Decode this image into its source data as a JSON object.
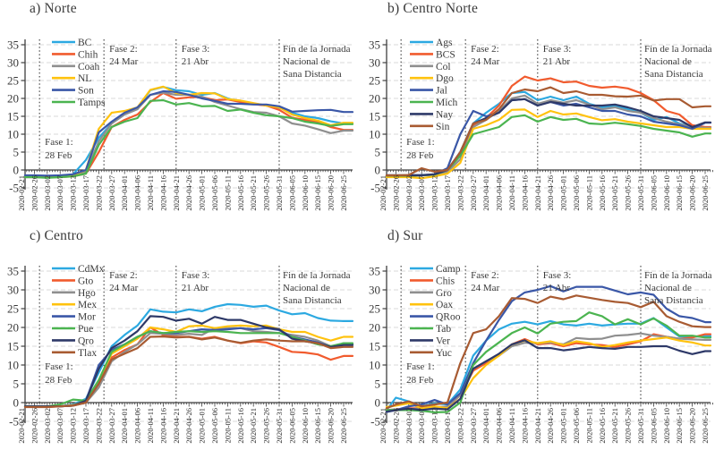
{
  "figure": {
    "background": "#ffffff"
  },
  "axis": {
    "ylim": [
      -5,
      35
    ],
    "y_ticks": [
      -5,
      0,
      5,
      10,
      15,
      20,
      25,
      30,
      35
    ],
    "x_tick_labels": [
      "2020-02-21",
      "2020-02-26",
      "2020-03-02",
      "2020-03-07",
      "2020-03-12",
      "2020-03-17",
      "2020-03-22",
      "2020-03-27",
      "2020-04-01",
      "2020-04-06",
      "2020-04-11",
      "2020-04-16",
      "2020-04-21",
      "2020-04-26",
      "2020-05-01",
      "2020-05-06",
      "2020-05-11",
      "2020-05-16",
      "2020-05-21",
      "2020-05-26",
      "2020-05-31",
      "2020-06-05",
      "2020-06-10",
      "2020-06-15",
      "2020-06-20",
      "2020-06-25"
    ],
    "x_tick_interval_days": 5,
    "grid": "dashed-horizontal",
    "legend_position": "upper-left"
  },
  "colors": {
    "axis": "#3f3f3f",
    "grid": "#d9d9d9",
    "text": "#3a3a3a",
    "tick_label": "#2b2b2b",
    "event_line": "#3c3c3c"
  },
  "events": [
    {
      "name": "fase-1",
      "lines": [
        "Fase 1:",
        "28 Feb"
      ],
      "date": "2020-02-28",
      "placement": "lower"
    },
    {
      "name": "fase-2",
      "lines": [
        "Fase 2:",
        "24 Mar"
      ],
      "date": "2020-03-24",
      "placement": "upper"
    },
    {
      "name": "fase-3",
      "lines": [
        "Fase 3:",
        "21 Abr"
      ],
      "date": "2020-04-21",
      "placement": "upper"
    },
    {
      "name": "fin-jornada",
      "lines": [
        "Fin de la Jornada",
        "Nacional de",
        "Sana Distancia"
      ],
      "date": "2020-05-31",
      "placement": "upper"
    }
  ],
  "chart_data": [
    {
      "id": "norte",
      "title": "a) Norte",
      "type": "line",
      "series": [
        {
          "name": "BC",
          "color": "#2CA9E1",
          "values": [
            -2,
            -2,
            -2,
            -1.8,
            -1.2,
            2.8,
            9,
            13,
            15.5,
            17,
            22.3,
            23.2,
            22.3,
            22,
            21,
            21.5,
            20,
            19,
            18.6,
            18,
            17.4,
            16,
            15,
            14.5,
            13.6,
            13
          ]
        },
        {
          "name": "Chih",
          "color": "#F15B2E",
          "values": [
            -2,
            -2,
            -2,
            -2,
            -1.8,
            -1,
            5,
            12,
            14,
            15.5,
            19,
            21.5,
            19.9,
            20.3,
            20.4,
            19.5,
            19.7,
            19,
            18.4,
            18,
            16.8,
            14.6,
            14,
            13.4,
            12,
            11.2
          ]
        },
        {
          "name": "Coah",
          "color": "#8F8F8F",
          "values": [
            -1.8,
            -2,
            -2,
            -2,
            -1.5,
            -0.5,
            8,
            13,
            15.5,
            17,
            21,
            21.6,
            21,
            21,
            20.5,
            19,
            18,
            17,
            16.2,
            16,
            15,
            13,
            12.4,
            11.4,
            10.3,
            11
          ]
        },
        {
          "name": "NL",
          "color": "#FFC20E",
          "values": [
            -1.8,
            -1.8,
            -1.8,
            -1.8,
            -1.5,
            0,
            11.5,
            16,
            16.5,
            17.5,
            22.4,
            23.3,
            21.5,
            21,
            21.5,
            21.4,
            19.8,
            19.4,
            18.7,
            18,
            17.5,
            15.5,
            14.5,
            13.8,
            12.5,
            13.2
          ]
        },
        {
          "name": "Son",
          "color": "#3A57A7",
          "values": [
            -1.5,
            -1.5,
            -1.6,
            -1.5,
            -1.2,
            0,
            10.5,
            13.5,
            16,
            17.5,
            21,
            22,
            21.8,
            21,
            20,
            19.3,
            18.5,
            18.5,
            18.3,
            18.3,
            17.8,
            16.3,
            16.5,
            16.7,
            16.8,
            16.2
          ]
        },
        {
          "name": "Tamps",
          "color": "#4BB450",
          "values": [
            -2,
            -2,
            -2.2,
            -2,
            -1.8,
            -1,
            7,
            12,
            13.5,
            14.5,
            19.3,
            19.5,
            18.3,
            18.7,
            17.8,
            17.9,
            16.5,
            16.9,
            16,
            15.3,
            15,
            14.5,
            13.5,
            13,
            12.3,
            12.8
          ]
        }
      ]
    },
    {
      "id": "centro-norte",
      "title": "b) Centro Norte",
      "type": "line",
      "series": [
        {
          "name": "Ags",
          "color": "#2CA9E1",
          "values": [
            -1.5,
            -1.5,
            -1.5,
            -1.5,
            -1.2,
            0,
            5,
            13,
            16,
            18.5,
            21.5,
            21.8,
            19.5,
            20.5,
            19.5,
            20.5,
            18.5,
            17.5,
            18,
            17,
            16,
            14,
            14.8,
            13,
            12,
            11.8
          ]
        },
        {
          "name": "BCS",
          "color": "#F15B2E",
          "values": [
            -1.5,
            -1.6,
            -1.5,
            -1.5,
            -1.3,
            0,
            4,
            12.5,
            14.5,
            18,
            23.5,
            26.1,
            25,
            25.6,
            24.5,
            24.7,
            23.5,
            23,
            23.3,
            22.8,
            21.5,
            19.5,
            16.5,
            15.5,
            12.5,
            12
          ]
        },
        {
          "name": "Col",
          "color": "#8F8F8F",
          "values": [
            -1.5,
            -1.5,
            -1.6,
            -1.5,
            -1.4,
            -0.5,
            3,
            12,
            14,
            16.5,
            20,
            20.8,
            18.5,
            19.5,
            18.8,
            19.5,
            18.3,
            17,
            17.5,
            16.5,
            16,
            14.5,
            13.5,
            12.8,
            12,
            11.8
          ]
        },
        {
          "name": "Dgo",
          "color": "#FFC20E",
          "values": [
            -2,
            -2,
            -2,
            -2.3,
            -1.8,
            -1,
            2,
            11.5,
            12.5,
            14,
            16.8,
            16.9,
            14.8,
            16.5,
            15.5,
            15.8,
            14.8,
            13.9,
            14.2,
            13.5,
            13,
            12.5,
            12,
            12,
            11.5,
            11.5
          ]
        },
        {
          "name": "Jal",
          "color": "#3A57A7",
          "values": [
            -1.5,
            -1.5,
            -1.5,
            -1.4,
            -1.2,
            0.5,
            10,
            16.5,
            15,
            16,
            19.5,
            19.8,
            18,
            19,
            18,
            18.5,
            17.5,
            16.5,
            16.5,
            15.5,
            15,
            13.5,
            13,
            12.5,
            11.5,
            13.2
          ]
        },
        {
          "name": "Mich",
          "color": "#4BB450",
          "values": [
            -1.6,
            -1.6,
            -1.6,
            -1.5,
            -1.3,
            0,
            4,
            10,
            11,
            12,
            14.8,
            15.3,
            13.5,
            14.8,
            14,
            14.3,
            13,
            12.8,
            13.2,
            12.8,
            12.3,
            11.5,
            11,
            10.5,
            9.3,
            10.2
          ]
        },
        {
          "name": "Nay",
          "color": "#2E3968",
          "values": [
            -1.5,
            -1.5,
            -1.5,
            -1.5,
            -1.2,
            0,
            5,
            13,
            14.5,
            16,
            19.5,
            19.8,
            18,
            19,
            18.5,
            18,
            18,
            18,
            18.3,
            17.5,
            16.5,
            15,
            14.5,
            14,
            12,
            13.3
          ]
        },
        {
          "name": "Sin",
          "color": "#A85B32",
          "values": [
            -1.5,
            -1.5,
            -1.4,
            0.5,
            -0.5,
            0,
            5,
            13,
            14,
            17,
            21.5,
            22.5,
            22,
            23.1,
            21.5,
            22,
            21,
            21,
            20.6,
            20.5,
            20.8,
            19.4,
            19.8,
            19.8,
            17.5,
            17.8
          ]
        }
      ]
    },
    {
      "id": "centro",
      "title": "c) Centro",
      "type": "line",
      "series": [
        {
          "name": "CdMx",
          "color": "#2CA9E1",
          "values": [
            -1,
            -1,
            -1,
            -1,
            -0.5,
            1,
            8,
            15,
            18,
            20.5,
            24.8,
            24.2,
            24,
            24.8,
            24.3,
            25.5,
            26.2,
            26,
            25.5,
            25.8,
            24.5,
            23.5,
            23.8,
            22.5,
            21.8,
            21.7
          ]
        },
        {
          "name": "Gto",
          "color": "#F15B2E",
          "values": [
            -1,
            -1,
            -1.2,
            -1,
            -0.8,
            0,
            5,
            12,
            14,
            15.5,
            20,
            18,
            17.5,
            17.5,
            17,
            17.5,
            16.5,
            15.8,
            16.3,
            16,
            14.8,
            13.5,
            13.3,
            12.8,
            11.4,
            12.4
          ]
        },
        {
          "name": "Hgo",
          "color": "#8F8F8F",
          "values": [
            -1,
            -1,
            -1,
            -1,
            -0.8,
            0,
            4,
            11,
            13.5,
            15.5,
            18.5,
            18.3,
            18,
            18.3,
            18,
            19.8,
            19.8,
            19.8,
            19,
            18.8,
            18.5,
            18,
            17.5,
            16.5,
            15,
            15.3
          ]
        },
        {
          "name": "Mex",
          "color": "#FFC20E",
          "values": [
            -1,
            -1,
            -1,
            -1,
            -0.7,
            0.5,
            6,
            13,
            15,
            17,
            20,
            19.5,
            18.8,
            20.3,
            20.5,
            19.8,
            20.3,
            20.5,
            20.3,
            20.5,
            19.5,
            18.8,
            18.8,
            17.5,
            16.5,
            17.5
          ]
        },
        {
          "name": "Mor",
          "color": "#3A57A7",
          "values": [
            -1,
            -1,
            -1,
            -1,
            -0.8,
            0.5,
            10,
            14,
            15.5,
            17.5,
            19,
            18.5,
            18.5,
            19,
            19.5,
            19.3,
            19.5,
            19.8,
            19.5,
            19.8,
            19.3,
            17.5,
            16.8,
            16,
            14.8,
            15.5
          ]
        },
        {
          "name": "Pue",
          "color": "#4BB450",
          "values": [
            -1,
            -1,
            -1,
            -0.5,
            0.8,
            0.5,
            6,
            13.5,
            15.5,
            17.5,
            19,
            18.5,
            18.8,
            19,
            18.8,
            19,
            18.8,
            18.5,
            18.5,
            18.5,
            18.5,
            17.5,
            16.5,
            15.5,
            15,
            15.8
          ]
        },
        {
          "name": "Qro",
          "color": "#2E3968",
          "values": [
            -1,
            -1,
            -1,
            -1,
            -0.8,
            0.5,
            9,
            14.5,
            16.5,
            19,
            23,
            22.8,
            21.8,
            22.3,
            21,
            22.8,
            22,
            22,
            21,
            20,
            19.5,
            17,
            16.3,
            15.8,
            14.8,
            15.3
          ]
        },
        {
          "name": "Tlax",
          "color": "#A85B32",
          "values": [
            -1.2,
            -1.2,
            -1.2,
            -1,
            -0.8,
            0,
            5,
            11.5,
            13,
            14.5,
            17.5,
            17.6,
            17.3,
            17.5,
            16.8,
            17.3,
            16.5,
            15.9,
            16.5,
            16.8,
            16.5,
            16.3,
            16.3,
            15.8,
            14.5,
            14.8
          ]
        }
      ]
    },
    {
      "id": "sur",
      "title": "d) Sur",
      "type": "line",
      "series": [
        {
          "name": "Camp",
          "color": "#2CA9E1",
          "values": [
            -2,
            1.3,
            0.3,
            -1,
            -0.2,
            -0.5,
            3.5,
            12.5,
            16.5,
            19.5,
            21,
            21.5,
            20.8,
            21.7,
            20.8,
            20.5,
            21,
            20.5,
            20.8,
            21,
            21,
            22.5,
            20,
            17.6,
            17.5,
            17.7
          ]
        },
        {
          "name": "Chis",
          "color": "#F15B2E",
          "values": [
            -2,
            -1.8,
            -1.5,
            -1.5,
            -1.2,
            -1.2,
            2,
            8.5,
            10.5,
            12.5,
            15.5,
            16.9,
            15.5,
            15.8,
            15,
            15.8,
            15.5,
            15.3,
            14.8,
            15.5,
            16.3,
            18.2,
            17.5,
            17,
            17.3,
            18.2
          ]
        },
        {
          "name": "Gro",
          "color": "#8F8F8F",
          "values": [
            -2,
            -1.8,
            -1.8,
            -1.5,
            -1.3,
            -1,
            2,
            9,
            11,
            12.5,
            15,
            15.9,
            15.8,
            16,
            15.5,
            17.2,
            16.9,
            17,
            17.8,
            18,
            18.4,
            17.8,
            17.5,
            17,
            16.8,
            16.7
          ]
        },
        {
          "name": "Oax",
          "color": "#FFC20E",
          "values": [
            -1.2,
            -0.8,
            -0.2,
            -1.5,
            -1,
            -1.5,
            1,
            6.5,
            10,
            12.5,
            15.5,
            16.5,
            15.8,
            16.3,
            15.3,
            16.3,
            15.8,
            14.8,
            15.3,
            16,
            16.5,
            16.9,
            17.3,
            16.5,
            16,
            15.2
          ]
        },
        {
          "name": "QRoo",
          "color": "#3A57A7",
          "values": [
            -2.5,
            -2,
            -1,
            -0.5,
            0.7,
            -0.5,
            2.5,
            10.5,
            16.5,
            22,
            27,
            29.3,
            30,
            31,
            29.6,
            30.8,
            30.8,
            30.8,
            29.8,
            28.8,
            29.3,
            28.7,
            25,
            23,
            22.5,
            21.4
          ]
        },
        {
          "name": "Tab",
          "color": "#4BB450",
          "values": [
            -2,
            -2,
            -2,
            -2.2,
            -2.6,
            -2.5,
            0,
            10,
            13.5,
            16,
            18.5,
            20,
            18.4,
            21,
            21.5,
            21.7,
            24,
            23,
            20.8,
            22.2,
            20.8,
            22.4,
            20.5,
            17.8,
            17.8,
            17.3
          ]
        },
        {
          "name": "Ver",
          "color": "#2E3968",
          "values": [
            -2.4,
            -2,
            -1.6,
            -2,
            -1.6,
            -1.8,
            1,
            9,
            11,
            13,
            15.5,
            16.6,
            14.5,
            14.5,
            13.9,
            14.3,
            14.8,
            14.5,
            14.3,
            14.8,
            14.8,
            15,
            15,
            13.8,
            12.9,
            13.7
          ]
        },
        {
          "name": "Yuc",
          "color": "#A85B32",
          "values": [
            -1.5,
            -0.5,
            0.3,
            -1,
            -0.5,
            0,
            10.5,
            18.5,
            19.5,
            23,
            27.8,
            27.6,
            26.5,
            28.2,
            27.5,
            28.5,
            27.9,
            27.3,
            26.8,
            26.5,
            25.4,
            26.8,
            23,
            21.5,
            20.3,
            20.1
          ]
        }
      ]
    }
  ]
}
